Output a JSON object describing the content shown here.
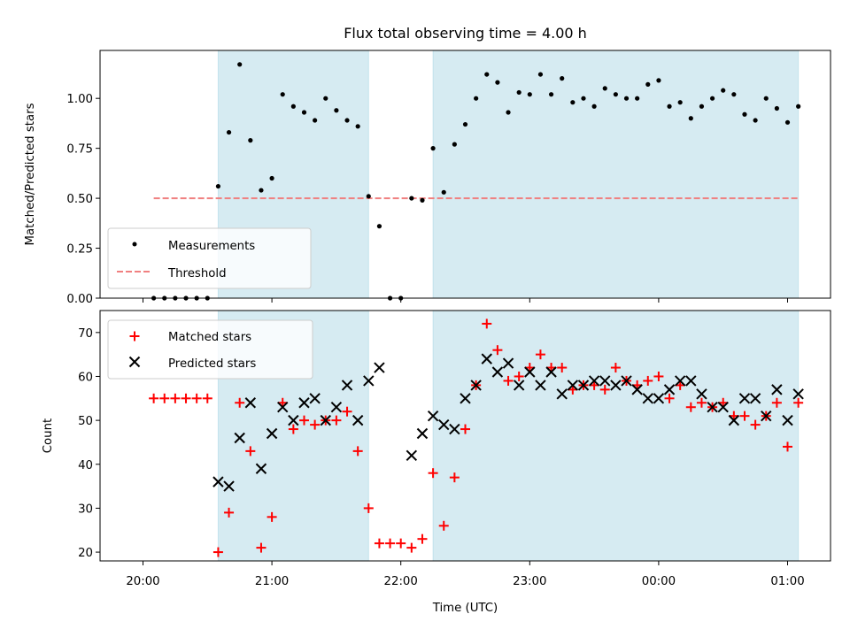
{
  "colors": {
    "shade": "#add8e6",
    "measurement": "#000000",
    "threshold": "#f08080",
    "matched": "#ff0000",
    "predicted": "#000000"
  },
  "chart_data": [
    {
      "type": "scatter",
      "title": "Flux total observing time = 4.00 h",
      "ylabel": "Matched/Predicted stars",
      "xlabel": "",
      "ylim": [
        0,
        1.24
      ],
      "yticks": [
        "0.00",
        "0.25",
        "0.50",
        "0.75",
        "1.00"
      ],
      "shaded_spans": [
        [
          "20:35",
          "21:45"
        ],
        [
          "22:15",
          "01:05"
        ]
      ],
      "legend": {
        "position": "lower left",
        "entries": [
          "Measurements",
          "Threshold"
        ]
      },
      "threshold": {
        "name": "Threshold",
        "value": 0.5,
        "x_range": [
          "20:05",
          "01:05"
        ]
      },
      "series": [
        {
          "name": "Measurements",
          "x": [
            "20:05",
            "20:10",
            "20:15",
            "20:20",
            "20:25",
            "20:30",
            "20:35",
            "20:40",
            "20:45",
            "20:50",
            "20:55",
            "21:00",
            "21:05",
            "21:10",
            "21:15",
            "21:20",
            "21:25",
            "21:30",
            "21:35",
            "21:40",
            "21:45",
            "21:50",
            "21:55",
            "22:00",
            "22:05",
            "22:10",
            "22:15",
            "22:20",
            "22:25",
            "22:30",
            "22:35",
            "22:40",
            "22:45",
            "22:50",
            "22:55",
            "23:00",
            "23:05",
            "23:10",
            "23:15",
            "23:20",
            "23:25",
            "23:30",
            "23:35",
            "23:40",
            "23:45",
            "23:50",
            "23:55",
            "00:00",
            "00:05",
            "00:10",
            "00:15",
            "00:20",
            "00:25",
            "00:30",
            "00:35",
            "00:40",
            "00:45",
            "00:50",
            "00:55",
            "01:00",
            "01:05"
          ],
          "y": [
            0,
            0,
            0,
            0,
            0,
            0,
            0.56,
            0.83,
            1.17,
            0.79,
            0.54,
            0.6,
            1.02,
            0.96,
            0.93,
            0.89,
            1.0,
            0.94,
            0.89,
            0.86,
            0.51,
            0.36,
            0,
            0,
            0.5,
            0.49,
            0.75,
            0.53,
            0.77,
            0.87,
            1.0,
            1.12,
            1.08,
            0.93,
            1.03,
            1.02,
            1.12,
            1.02,
            1.1,
            0.98,
            1.0,
            0.96,
            1.05,
            1.02,
            1.0,
            1.0,
            1.07,
            1.09,
            0.96,
            0.98,
            0.9,
            0.96,
            1.0,
            1.04,
            1.02,
            0.92,
            0.89,
            1.0,
            0.95,
            0.88,
            0.96
          ]
        }
      ]
    },
    {
      "type": "scatter",
      "title": "",
      "ylabel": "Count",
      "xlabel": "Time (UTC)",
      "ylim": [
        18,
        75
      ],
      "yticks": [
        "20",
        "30",
        "40",
        "50",
        "60",
        "70"
      ],
      "xticks": [
        "20:00",
        "21:00",
        "22:00",
        "23:00",
        "00:00",
        "01:00"
      ],
      "shaded_spans": [
        [
          "20:35",
          "21:45"
        ],
        [
          "22:15",
          "01:05"
        ]
      ],
      "legend": {
        "position": "upper left",
        "entries": [
          "Matched stars",
          "Predicted stars"
        ]
      },
      "series": [
        {
          "name": "Matched stars",
          "x": [
            "20:05",
            "20:10",
            "20:15",
            "20:20",
            "20:25",
            "20:30",
            "20:35",
            "20:40",
            "20:45",
            "20:50",
            "20:55",
            "21:00",
            "21:05",
            "21:10",
            "21:15",
            "21:20",
            "21:25",
            "21:30",
            "21:35",
            "21:40",
            "21:45",
            "21:50",
            "21:55",
            "22:00",
            "22:05",
            "22:10",
            "22:15",
            "22:20",
            "22:25",
            "22:30",
            "22:35",
            "22:40",
            "22:45",
            "22:50",
            "22:55",
            "23:00",
            "23:05",
            "23:10",
            "23:15",
            "23:20",
            "23:25",
            "23:30",
            "23:35",
            "23:40",
            "23:45",
            "23:50",
            "23:55",
            "00:00",
            "00:05",
            "00:10",
            "00:15",
            "00:20",
            "00:25",
            "00:30",
            "00:35",
            "00:40",
            "00:45",
            "00:50",
            "00:55",
            "01:00",
            "01:05"
          ],
          "y": [
            55,
            55,
            55,
            55,
            55,
            55,
            20,
            29,
            54,
            43,
            21,
            28,
            54,
            48,
            50,
            49,
            50,
            50,
            52,
            43,
            30,
            22,
            22,
            22,
            21,
            23,
            38,
            26,
            37,
            48,
            58,
            72,
            66,
            59,
            60,
            62,
            65,
            62,
            62,
            57,
            58,
            58,
            57,
            62,
            59,
            58,
            59,
            60,
            55,
            58,
            53,
            54,
            53,
            54,
            51,
            51,
            49,
            51,
            54,
            44,
            54
          ]
        },
        {
          "name": "Predicted stars",
          "x": [
            "20:35",
            "20:40",
            "20:45",
            "20:50",
            "20:55",
            "21:00",
            "21:05",
            "21:10",
            "21:15",
            "21:20",
            "21:25",
            "21:30",
            "21:35",
            "21:40",
            "21:45",
            "21:50",
            "22:05",
            "22:10",
            "22:15",
            "22:20",
            "22:25",
            "22:30",
            "22:35",
            "22:40",
            "22:45",
            "22:50",
            "22:55",
            "23:00",
            "23:05",
            "23:10",
            "23:15",
            "23:20",
            "23:25",
            "23:30",
            "23:35",
            "23:40",
            "23:45",
            "23:50",
            "23:55",
            "00:00",
            "00:05",
            "00:10",
            "00:15",
            "00:20",
            "00:25",
            "00:30",
            "00:35",
            "00:40",
            "00:45",
            "00:50",
            "00:55",
            "01:00",
            "01:05"
          ],
          "y": [
            36,
            35,
            46,
            54,
            39,
            47,
            53,
            50,
            54,
            55,
            50,
            53,
            58,
            50,
            59,
            62,
            42,
            47,
            51,
            49,
            48,
            55,
            58,
            64,
            61,
            63,
            58,
            61,
            58,
            61,
            56,
            58,
            58,
            59,
            59,
            58,
            59,
            57,
            55,
            55,
            57,
            59,
            59,
            56,
            53,
            53,
            50,
            55,
            55,
            51,
            57,
            50,
            56
          ]
        }
      ]
    }
  ]
}
